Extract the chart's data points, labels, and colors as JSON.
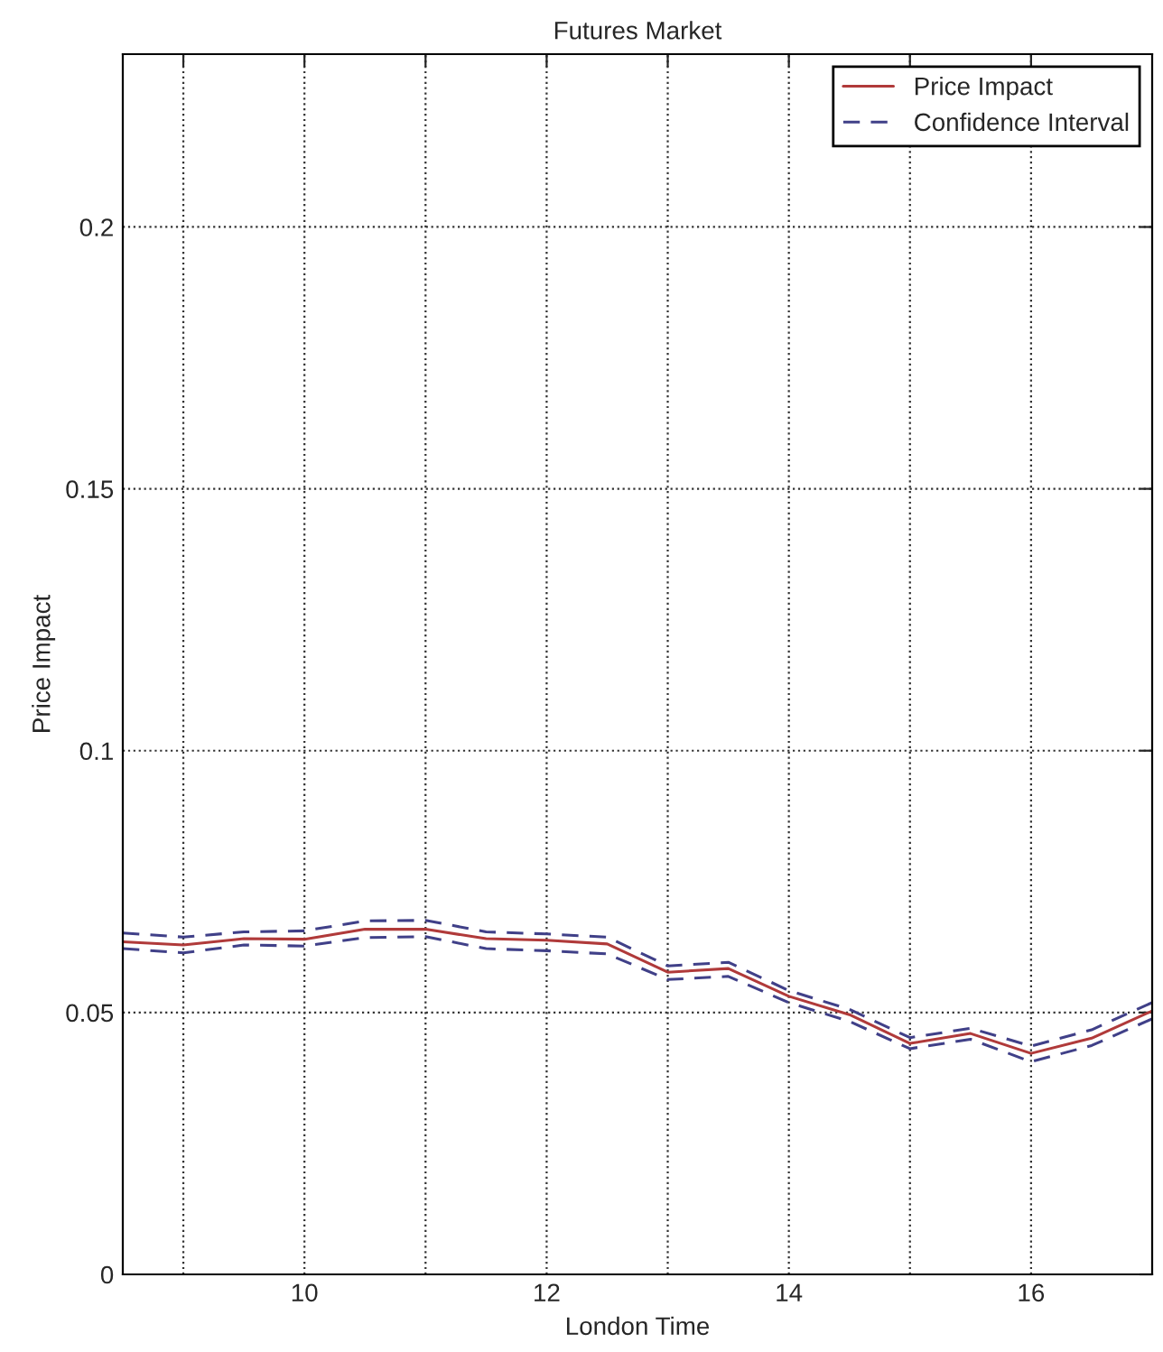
{
  "chart_data": {
    "type": "line",
    "title": "Futures Market",
    "xlabel": "London Time",
    "ylabel": "Price Impact",
    "x": [
      8.5,
      9,
      9.5,
      10,
      10.5,
      11,
      11.5,
      12,
      12.5,
      13,
      13.5,
      14,
      14.5,
      15,
      15.5,
      16,
      16.5,
      17
    ],
    "series": [
      {
        "name": "Price Impact",
        "color": "#b03a3a",
        "line_style": "solid",
        "values": [
          0.0635,
          0.0629,
          0.0641,
          0.064,
          0.0659,
          0.0659,
          0.0641,
          0.0638,
          0.0631,
          0.0577,
          0.0584,
          0.0531,
          0.0496,
          0.0441,
          0.046,
          0.0422,
          0.0451,
          0.0503
        ]
      },
      {
        "name": "Confidence Interval",
        "color": "#404088",
        "line_style": "dashed",
        "values": [
          0.0652,
          0.0644,
          0.0654,
          0.0656,
          0.0675,
          0.0676,
          0.0654,
          0.065,
          0.0644,
          0.0589,
          0.0596,
          0.0542,
          0.0506,
          0.0452,
          0.047,
          0.0436,
          0.0467,
          0.0519
        ]
      },
      {
        "color": "#404088",
        "line_style": "dashed",
        "values": [
          0.0622,
          0.0614,
          0.0629,
          0.0627,
          0.0643,
          0.0645,
          0.0622,
          0.0618,
          0.0612,
          0.0563,
          0.0569,
          0.0519,
          0.0483,
          0.0431,
          0.0449,
          0.0406,
          0.0437,
          0.0488
        ]
      }
    ],
    "xlim": [
      8.5,
      17
    ],
    "ylim": [
      0,
      0.233
    ],
    "xticks": [
      {
        "value": 9,
        "label": null
      },
      10,
      {
        "value": 11,
        "label": null
      },
      12,
      {
        "value": 13,
        "label": null
      },
      14,
      {
        "value": 15,
        "label": null
      },
      16
    ],
    "yticks": [
      0,
      0.05,
      0.1,
      0.15,
      0.2
    ],
    "grid": true,
    "legend": "top right",
    "marker": "none"
  }
}
